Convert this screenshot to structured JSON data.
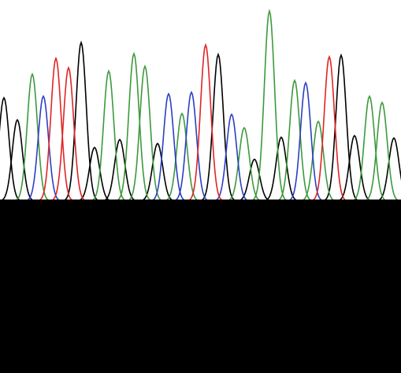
{
  "chart_data": {
    "type": "chromatogram",
    "xlim": [
      0,
      509
    ],
    "ylim": [
      0,
      253
    ],
    "series": [
      {
        "color": "#000000",
        "x": [
          5,
          22,
          103,
          120,
          152,
          200,
          277,
          323,
          357,
          433,
          450,
          500
        ],
        "values": [
          131,
          103,
          201,
          68,
          78,
          73,
          186,
          53,
          81,
          185,
          83,
          80
        ]
      },
      {
        "color": "#3c9a3c",
        "x": [
          41,
          138,
          170,
          184,
          231,
          310,
          342,
          374,
          404,
          469,
          485
        ],
        "values": [
          161,
          165,
          187,
          171,
          111,
          93,
          241,
          153,
          101,
          133,
          125
        ]
      },
      {
        "color": "#2c3fc2",
        "x": [
          55,
          214,
          243,
          294,
          388
        ],
        "values": [
          133,
          136,
          138,
          110,
          150
        ]
      },
      {
        "color": "#e02424",
        "x": [
          71,
          87,
          261,
          418
        ],
        "values": [
          181,
          169,
          198,
          183
        ]
      }
    ]
  }
}
